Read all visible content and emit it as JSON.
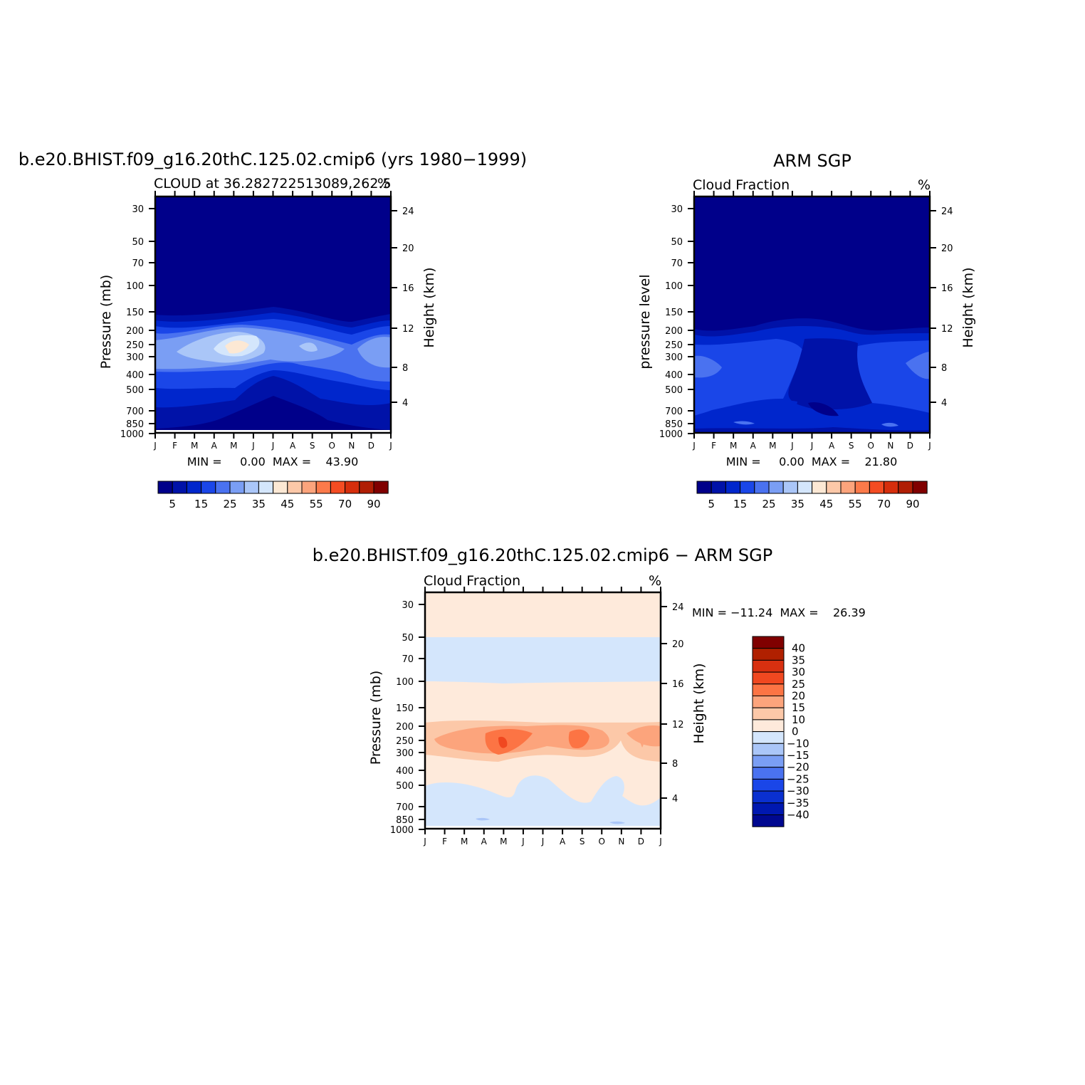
{
  "panels": [
    {
      "id": "model",
      "title": "b.e20.BHIST.f09_g16.20thC.125.02.cmip6 (yrs 1980−1999)",
      "left_string": "CLOUD at 36.282722513089,262.5",
      "right_string": "%",
      "ylabel_left": "Pressure (mb)",
      "ylabel_right": "Height (km)",
      "minmax": "MIN =     0.00  MAX =    43.90"
    },
    {
      "id": "obs",
      "title": "ARM SGP",
      "left_string": "Cloud Fraction",
      "right_string": "%",
      "ylabel_left": "pressure level",
      "ylabel_right": "Height (km)",
      "minmax": "MIN =     0.00  MAX =    21.80"
    },
    {
      "id": "diff",
      "title": "b.e20.BHIST.f09_g16.20thC.125.02.cmip6 − ARM SGP",
      "left_string": "Cloud Fraction",
      "right_string": "%",
      "ylabel_left": "Pressure (mb)",
      "ylabel_right": "Height (km)",
      "minmax": "MIN = −11.24  MAX =    26.39"
    }
  ],
  "months": [
    "J",
    "F",
    "M",
    "A",
    "M",
    "J",
    "J",
    "A",
    "S",
    "O",
    "N",
    "D",
    "J"
  ],
  "pressure_ticks": [
    "30",
    "50",
    "70",
    "100",
    "150",
    "200",
    "250",
    "300",
    "400",
    "500",
    "700",
    "850",
    "1000"
  ],
  "height_ticks": [
    "24",
    "20",
    "16",
    "12",
    "8",
    "4"
  ],
  "colorbar_horizontal": {
    "colors": [
      "#00008a",
      "#0012a8",
      "#0026cc",
      "#1a46e8",
      "#4a72f0",
      "#7a9ef4",
      "#aac6f8",
      "#d4e6fc",
      "#fce8d4",
      "#fcc8a8",
      "#fca47c",
      "#fc7a4a",
      "#f44c22",
      "#d62e0c",
      "#b01e04",
      "#800000"
    ],
    "labels": [
      "5",
      "15",
      "25",
      "35",
      "45",
      "55",
      "70",
      "90"
    ]
  },
  "colorbar_vertical": {
    "colors": [
      "#800000",
      "#b02000",
      "#d83010",
      "#f04820",
      "#fc7444",
      "#fca47c",
      "#fcc8a8",
      "#feeadb",
      "#d4e6fc",
      "#aac6f8",
      "#7a9ef4",
      "#4a72f0",
      "#1a46e8",
      "#0a30d0",
      "#0018b0",
      "#000890"
    ],
    "labels": [
      "40",
      "35",
      "30",
      "25",
      "20",
      "15",
      "10",
      "0",
      "−10",
      "−15",
      "−20",
      "−25",
      "−30",
      "−35",
      "−40"
    ]
  },
  "chart_data": [
    {
      "type": "heatmap",
      "title": "b.e20.BHIST.f09_g16.20thC.125.02.cmip6 (yrs 1980−1999)",
      "variable": "CLOUD at 36.282722513089,262.5",
      "units": "%",
      "x": [
        "J",
        "F",
        "M",
        "A",
        "M",
        "J",
        "J",
        "A",
        "S",
        "O",
        "N",
        "D",
        "J"
      ],
      "y_pressure_mb": [
        1000,
        850,
        700,
        500,
        400,
        300,
        250,
        200,
        150,
        100,
        70,
        50,
        30
      ],
      "xlabel": "",
      "ylabel": "Pressure (mb)",
      "ylabel_right": "Height (km)",
      "min": 0.0,
      "max": 43.9,
      "summary_profile_pct": {
        "1000": 3,
        "700": 5,
        "500": 12,
        "400": 18,
        "300": 32,
        "250": 38,
        "200": 22,
        "150": 3,
        "100": 1,
        "30": 0
      }
    },
    {
      "type": "heatmap",
      "title": "ARM SGP",
      "variable": "Cloud Fraction",
      "units": "%",
      "x": [
        "J",
        "F",
        "M",
        "A",
        "M",
        "J",
        "J",
        "A",
        "S",
        "O",
        "N",
        "D",
        "J"
      ],
      "y_pressure_mb": [
        1000,
        850,
        700,
        500,
        400,
        300,
        250,
        200,
        150,
        100,
        70,
        50,
        30
      ],
      "ylabel": "pressure level",
      "ylabel_right": "Height (km)",
      "min": 0.0,
      "max": 21.8,
      "summary_profile_pct": {
        "1000": 5,
        "850": 14,
        "700": 12,
        "500": 13,
        "400": 15,
        "300": 17,
        "250": 16,
        "200": 8,
        "150": 1,
        "100": 0,
        "30": 0
      }
    },
    {
      "type": "heatmap",
      "title": "b.e20.BHIST.f09_g16.20thC.125.02.cmip6 − ARM SGP",
      "variable": "Cloud Fraction",
      "units": "%",
      "x": [
        "J",
        "F",
        "M",
        "A",
        "M",
        "J",
        "J",
        "A",
        "S",
        "O",
        "N",
        "D",
        "J"
      ],
      "y_pressure_mb": [
        1000,
        850,
        700,
        500,
        400,
        300,
        250,
        200,
        150,
        100,
        70,
        50,
        30
      ],
      "ylabel": "Pressure (mb)",
      "ylabel_right": "Height (km)",
      "min": -11.24,
      "max": 26.39,
      "summary_profile_pct": {
        "1000": -5,
        "850": -5,
        "700": -3,
        "500": 2,
        "400": 4,
        "300": 12,
        "250": 16,
        "200": 10,
        "150": 3,
        "100": -1,
        "70": -1,
        "50": 1,
        "30": 1
      }
    }
  ]
}
